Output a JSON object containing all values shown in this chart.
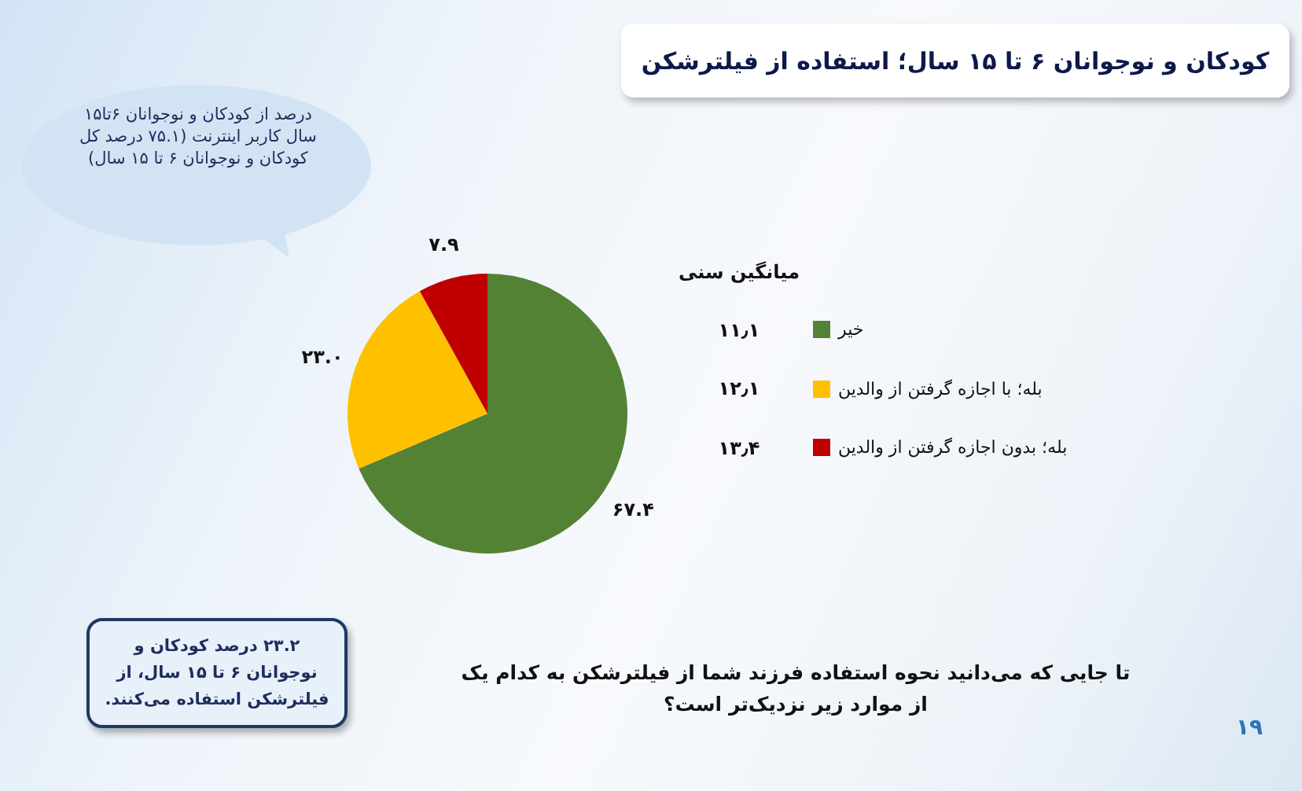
{
  "chart_data": {
    "type": "pie",
    "title": "کودکان و نوجوانان ۶ تا ۱۵ سال؛ استفاده از فیلترشکن",
    "subtitle": "تا جایی که می‌دانید نحوه استفاده فرزند شما از فیلترشکن به کدام یک از موارد زیر نزدیک‌تر است؟",
    "categories": [
      "خیر",
      "بله؛ با اجازه گرفتن از والدین",
      "بله؛ بدون اجازه گرفتن از والدین"
    ],
    "values": [
      67.4,
      23.0,
      7.9
    ],
    "value_labels": [
      "۶۷.۴",
      "۲۳.۰",
      "۷.۹"
    ],
    "colors": [
      "#548235",
      "#ffc000",
      "#c00000"
    ],
    "legend": "right",
    "legend_title": "میانگین سنی",
    "annotations": [
      "۱۱٫۱",
      "۱۲٫۱",
      "۱۳٫۴",
      "درصد از کودکان و نوجوانان ۶تا۱۵ سال کاربر اینترنت (۷۵.۱ درصد کل کودکان و نوجوانان ۶ تا ۱۵ سال)",
      "۲۳.۲ درصد کودکان و نوجوانان ۶ تا ۱۵ سال، از فیلترشکن استفاده می‌کنند.",
      "۱۹"
    ]
  }
}
